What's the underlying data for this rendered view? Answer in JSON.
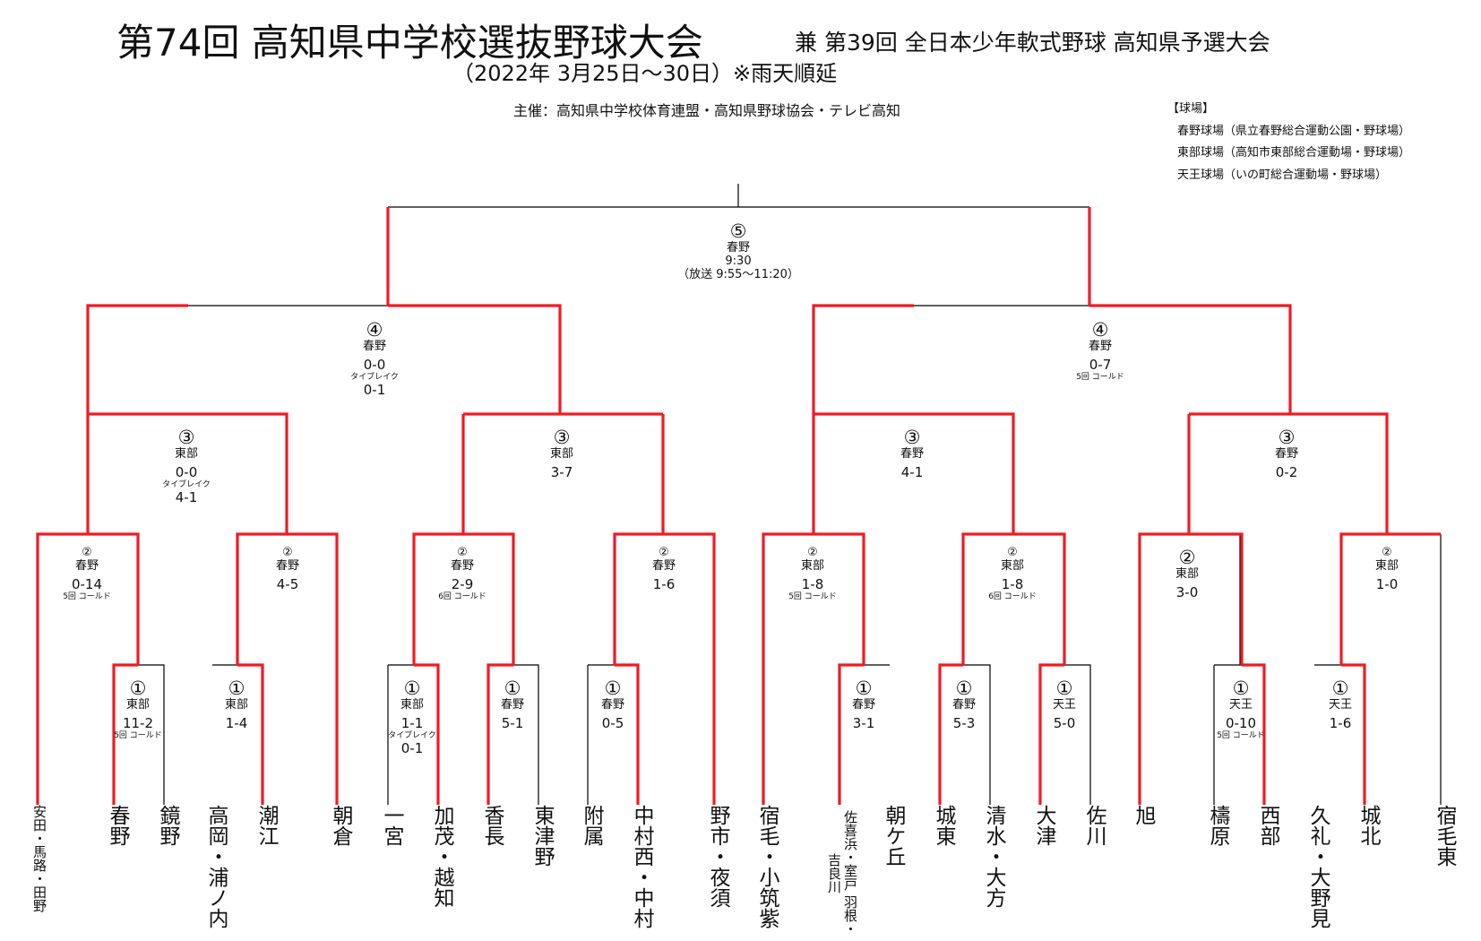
{
  "header": {
    "title": "第74回 高知県中学校選抜野球大会",
    "subtitle": "兼 第39回 全日本少年軟式野球 高知県予選大会",
    "dates": "（2022年 3月25日～30日）※雨天順延",
    "organizer": "主催：高知県中学校体育連盟・高知県野球協会・テレビ高知"
  },
  "venues": {
    "heading": "【球場】",
    "items": [
      "春野球場（県立春野総合運動公園・野球場）",
      "東部球場（高知市東部総合運動場・野球場）",
      "天王球場（いの町総合運動場・野球場）"
    ]
  },
  "teams": [
    "安田・馬路・田野",
    "春野",
    "鏡野",
    "高岡・浦ノ内",
    "潮江",
    "朝倉",
    "一宮",
    "加茂・越知",
    "香長",
    "東津野",
    "附属",
    "中村西・中村",
    "野市・夜須",
    "宿毛・小筑紫",
    "佐喜浜・室戸 羽根・吉良川",
    "朝ケ丘",
    "城東",
    "清水・大方",
    "大津",
    "佐川",
    "旭",
    "檮原",
    "西部",
    "久礼・大野見",
    "城北",
    "宿毛東"
  ],
  "matches": {
    "r1": [
      {
        "round": "①",
        "venue": "東部",
        "score": "11-2",
        "note": "5回 コールド"
      },
      {
        "round": "①",
        "venue": "東部",
        "score": "1-4"
      },
      {
        "round": "①",
        "venue": "東部",
        "score": "1-1",
        "note": "タイブレイク",
        "score2": "0-1"
      },
      {
        "round": "①",
        "venue": "春野",
        "score": "5-1"
      },
      {
        "round": "①",
        "venue": "春野",
        "score": "0-5"
      },
      {
        "round": "①",
        "venue": "春野",
        "score": "3-1"
      },
      {
        "round": "①",
        "venue": "春野",
        "score": "5-3"
      },
      {
        "round": "①",
        "venue": "天王",
        "score": "5-0"
      },
      {
        "round": "①",
        "venue": "天王",
        "score": "0-10",
        "note": "5回 コールド"
      },
      {
        "round": "①",
        "venue": "天王",
        "score": "1-6"
      }
    ],
    "r2": [
      {
        "round": "②",
        "venue": "春野",
        "score": "0-14",
        "note": "5回 コールド"
      },
      {
        "round": "②",
        "venue": "春野",
        "score": "4-5"
      },
      {
        "round": "②",
        "venue": "春野",
        "score": "2-9",
        "note": "6回 コールド"
      },
      {
        "round": "②",
        "venue": "春野",
        "score": "1-6"
      },
      {
        "round": "②",
        "venue": "東部",
        "score": "1-8",
        "note": "5回 コールド"
      },
      {
        "round": "②",
        "venue": "東部",
        "score": "1-8",
        "note": "6回 コールド"
      },
      {
        "round": "②",
        "venue": "東部",
        "score": "3-0"
      },
      {
        "round": "②",
        "venue": "東部",
        "score": "1-0"
      }
    ],
    "r3": [
      {
        "round": "③",
        "venue": "東部",
        "score": "0-0",
        "note": "タイブレイク",
        "score2": "4-1"
      },
      {
        "round": "③",
        "venue": "東部",
        "score": "3-7"
      },
      {
        "round": "③",
        "venue": "春野",
        "score": "4-1"
      },
      {
        "round": "③",
        "venue": "春野",
        "score": "0-2"
      }
    ],
    "semi": [
      {
        "round": "④",
        "venue": "春野",
        "score": "0-0",
        "note": "タイブレイク",
        "score2": "0-1"
      },
      {
        "round": "④",
        "venue": "春野",
        "score": "0-7",
        "note": "5回 コールド"
      }
    ],
    "final": {
      "round": "⑤",
      "venue": "春野",
      "time": "9:30",
      "broadcast": "（放送 9:55～11:20）"
    }
  }
}
